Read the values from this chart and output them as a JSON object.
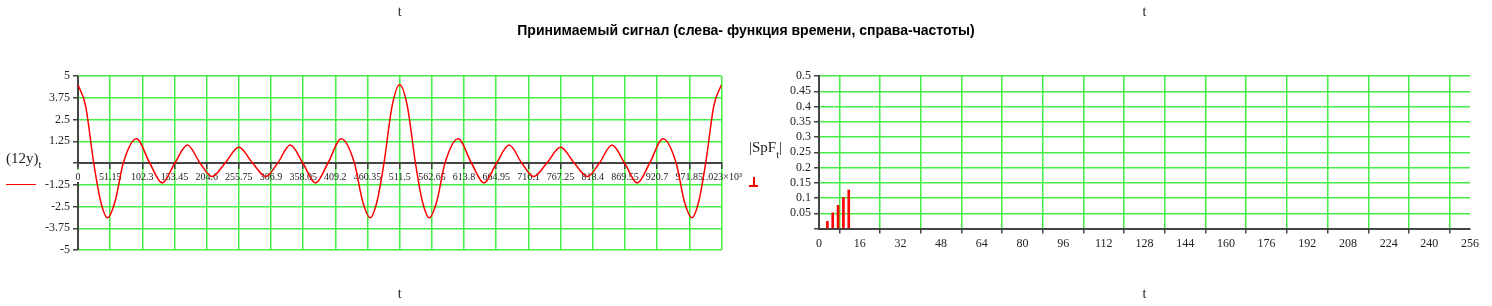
{
  "chart_data": [
    {
      "type": "line",
      "title": "Принимаемый сигнал (слева- функция времени, справа-частоты)",
      "xlabel": "t",
      "ylabel": "(12y)$_{t}$",
      "annotations": [
        "t"
      ],
      "x": [
        0,
        12,
        25,
        36,
        47,
        59,
        72,
        93,
        114,
        134,
        154,
        174,
        194,
        213,
        234,
        255.75,
        277.5,
        298.5,
        317.5,
        337.5,
        357.5,
        377.5,
        397.5,
        418.5,
        439.5,
        452.5,
        464.5,
        475.5,
        486.5,
        499.5,
        511.5,
        523.5,
        536.5,
        547.5,
        558.5,
        570.5,
        583.5,
        604.5,
        625.5,
        645.5,
        665.5,
        685.5,
        705.5,
        724.5,
        745.5,
        767.25,
        789,
        810,
        829,
        849,
        869,
        889,
        909,
        930,
        951,
        964,
        976,
        987,
        998,
        1011,
        1023
      ],
      "series": [
        {
          "color": "#ff0000",
          "values": [
            4.5,
            3.3,
            0,
            -2.2,
            -3.15,
            -2.2,
            0,
            1.4,
            0,
            -1.15,
            0,
            1.03,
            0,
            -0.78,
            0,
            0.9,
            0,
            -0.78,
            0,
            1.03,
            0,
            -1.15,
            0,
            1.4,
            0,
            -2.2,
            -3.15,
            -2.2,
            0,
            3.3,
            4.5,
            3.3,
            0,
            -2.2,
            -3.15,
            -2.2,
            0,
            1.4,
            0,
            -1.15,
            0,
            1.03,
            0,
            -0.78,
            0,
            0.9,
            0,
            -0.78,
            0,
            1.03,
            0,
            -1.15,
            0,
            1.4,
            0,
            -2.2,
            -3.15,
            -2.2,
            0,
            3.3,
            4.5
          ]
        }
      ],
      "xlim": [
        0,
        1023
      ],
      "xticks": [
        0,
        51.15,
        102.3,
        153.45,
        204.6,
        255.75,
        306.9,
        358.05,
        409.2,
        460.35,
        511.5,
        562.65,
        613.8,
        664.95,
        716.1,
        767.25,
        818.4,
        869.55,
        920.7,
        971.85,
        {
          "value": 1023,
          "label": "1.023×10³"
        }
      ],
      "ylim": [
        -5,
        5
      ],
      "yticks": [
        -5,
        -3.75,
        -2.5,
        -1.25,
        {
          "value": 0,
          "label": null
        },
        1.25,
        2.5,
        3.75,
        5
      ],
      "grid": true
    },
    {
      "type": "bar",
      "xlabel": "t",
      "ylabel": "|SpF$_{t}$|",
      "annotations": [
        "t"
      ],
      "x": [
        3.3,
        5.4,
        7.5,
        9.6,
        11.7
      ],
      "series": [
        {
          "color": "#ff0000",
          "values": [
            0.024,
            0.052,
            0.076,
            0.102,
            0.126
          ]
        }
      ],
      "xlim": [
        0,
        256
      ],
      "xticks": [
        0,
        16,
        32,
        48,
        64,
        80,
        96,
        112,
        128,
        144,
        160,
        176,
        192,
        208,
        224,
        240,
        256
      ],
      "ylim": [
        0,
        0.5
      ],
      "yticks": [
        {
          "value": 0,
          "label": null
        },
        0.05,
        0.1,
        0.15,
        0.2,
        0.25,
        0.3,
        0.35,
        0.4,
        0.45,
        0.5
      ],
      "grid": true
    }
  ]
}
